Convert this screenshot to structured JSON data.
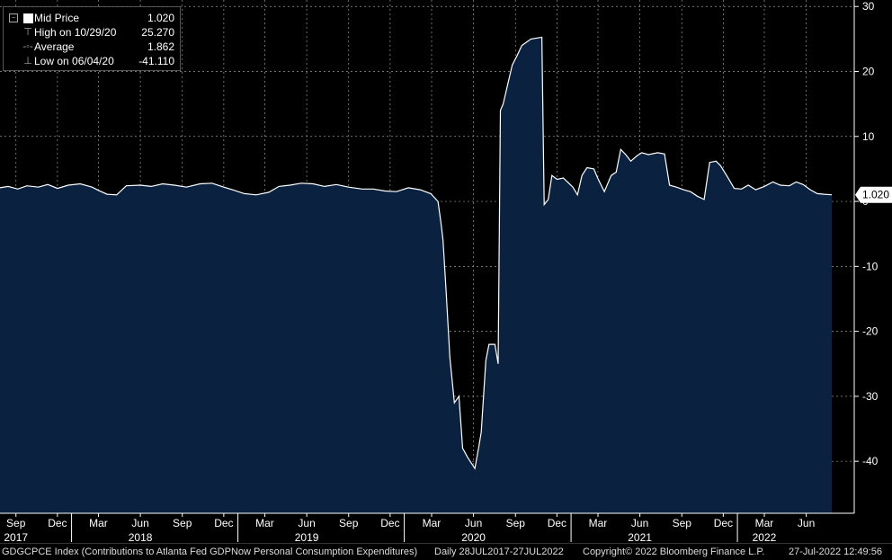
{
  "legend": {
    "mid_label": "Mid Price",
    "mid_value": "1.020",
    "high_label": "High on 10/29/20",
    "high_value": "25.270",
    "avg_label": "Average",
    "avg_value": "1.862",
    "low_label": "Low on 06/04/20",
    "low_value": "-41.110"
  },
  "last_price_label": "1.020",
  "footer": {
    "security": "GDGCPCE Index (Contributions to Atlanta Fed GDPNow Personal Consumption Expenditures)",
    "range": "Daily 28JUL2017-27JUL2022",
    "copyright": "Copyright© 2022 Bloomberg Finance L.P.",
    "timestamp": "27-Jul-2022 12:49:56"
  },
  "colors": {
    "fill": "#0a2240",
    "line": "#ffffff",
    "grid": "#9a9a9a",
    "background": "#000000"
  },
  "chart_data": {
    "type": "area",
    "ylim": [
      -48,
      31
    ],
    "yticks": [
      30,
      20,
      10,
      0,
      -10,
      -20,
      -30,
      -40
    ],
    "grid": true,
    "legend_position": "top-left",
    "xlim": [
      "2017-07-28",
      "2022-07-27"
    ],
    "month_ticks": [
      {
        "date": "2017-09-01",
        "label": "Sep"
      },
      {
        "date": "2017-12-01",
        "label": "Dec"
      },
      {
        "date": "2018-03-01",
        "label": "Mar"
      },
      {
        "date": "2018-06-01",
        "label": "Jun"
      },
      {
        "date": "2018-09-01",
        "label": "Sep"
      },
      {
        "date": "2018-12-01",
        "label": "Dec"
      },
      {
        "date": "2019-03-01",
        "label": "Mar"
      },
      {
        "date": "2019-06-01",
        "label": "Jun"
      },
      {
        "date": "2019-09-01",
        "label": "Sep"
      },
      {
        "date": "2019-12-01",
        "label": "Dec"
      },
      {
        "date": "2020-03-01",
        "label": "Mar"
      },
      {
        "date": "2020-06-01",
        "label": "Jun"
      },
      {
        "date": "2020-09-01",
        "label": "Sep"
      },
      {
        "date": "2020-12-01",
        "label": "Dec"
      },
      {
        "date": "2021-03-01",
        "label": "Mar"
      },
      {
        "date": "2021-06-01",
        "label": "Jun"
      },
      {
        "date": "2021-09-01",
        "label": "Sep"
      },
      {
        "date": "2021-12-01",
        "label": "Dec"
      },
      {
        "date": "2022-03-01",
        "label": "Mar"
      },
      {
        "date": "2022-06-01",
        "label": "Jun"
      }
    ],
    "year_ticks": [
      {
        "date": "2017-09-01",
        "label": "2017"
      },
      {
        "date": "2018-06-01",
        "label": "2018"
      },
      {
        "date": "2019-06-01",
        "label": "2019"
      },
      {
        "date": "2020-06-01",
        "label": "2020"
      },
      {
        "date": "2021-06-01",
        "label": "2021"
      },
      {
        "date": "2022-03-01",
        "label": "2022"
      }
    ],
    "series": [
      {
        "points": [
          [
            "2017-07-28",
            2.1
          ],
          [
            "2017-08-15",
            2.3
          ],
          [
            "2017-09-05",
            1.9
          ],
          [
            "2017-09-25",
            2.4
          ],
          [
            "2017-10-20",
            2.2
          ],
          [
            "2017-11-10",
            2.6
          ],
          [
            "2017-12-01",
            2.0
          ],
          [
            "2017-12-25",
            2.5
          ],
          [
            "2018-01-20",
            2.7
          ],
          [
            "2018-02-15",
            2.2
          ],
          [
            "2018-03-01",
            1.7
          ],
          [
            "2018-03-20",
            1.1
          ],
          [
            "2018-04-10",
            1.0
          ],
          [
            "2018-05-01",
            2.4
          ],
          [
            "2018-06-01",
            2.5
          ],
          [
            "2018-06-25",
            2.3
          ],
          [
            "2018-07-20",
            2.7
          ],
          [
            "2018-08-15",
            2.5
          ],
          [
            "2018-09-10",
            2.2
          ],
          [
            "2018-10-10",
            2.7
          ],
          [
            "2018-11-05",
            2.8
          ],
          [
            "2018-12-01",
            2.2
          ],
          [
            "2018-12-20",
            1.8
          ],
          [
            "2019-01-15",
            1.2
          ],
          [
            "2019-02-10",
            1.0
          ],
          [
            "2019-03-10",
            1.4
          ],
          [
            "2019-04-01",
            2.3
          ],
          [
            "2019-04-25",
            2.5
          ],
          [
            "2019-05-20",
            2.8
          ],
          [
            "2019-06-15",
            2.7
          ],
          [
            "2019-07-10",
            2.3
          ],
          [
            "2019-08-05",
            2.6
          ],
          [
            "2019-09-01",
            2.2
          ],
          [
            "2019-10-01",
            1.9
          ],
          [
            "2019-10-25",
            1.9
          ],
          [
            "2019-11-20",
            1.6
          ],
          [
            "2019-12-15",
            1.5
          ],
          [
            "2020-01-10",
            2.1
          ],
          [
            "2020-02-05",
            1.8
          ],
          [
            "2020-02-28",
            1.2
          ],
          [
            "2020-03-15",
            0.0
          ],
          [
            "2020-03-22",
            -3.5
          ],
          [
            "2020-03-26",
            -6.0
          ],
          [
            "2020-04-02",
            -14.0
          ],
          [
            "2020-04-10",
            -24.0
          ],
          [
            "2020-04-20",
            -31.0
          ],
          [
            "2020-04-30",
            -30.0
          ],
          [
            "2020-05-08",
            -38.0
          ],
          [
            "2020-05-20",
            -39.5
          ],
          [
            "2020-06-04",
            -41.11
          ],
          [
            "2020-06-12",
            -38.0
          ],
          [
            "2020-06-18",
            -35.5
          ],
          [
            "2020-06-28",
            -24.5
          ],
          [
            "2020-07-05",
            -22.0
          ],
          [
            "2020-07-18",
            -22.0
          ],
          [
            "2020-07-25",
            -25.0
          ],
          [
            "2020-07-30",
            14.0
          ],
          [
            "2020-08-05",
            15.0
          ],
          [
            "2020-08-15",
            18.0
          ],
          [
            "2020-08-25",
            21.0
          ],
          [
            "2020-09-05",
            22.5
          ],
          [
            "2020-09-15",
            24.0
          ],
          [
            "2020-09-25",
            24.5
          ],
          [
            "2020-10-05",
            25.0
          ],
          [
            "2020-10-29",
            25.27
          ],
          [
            "2020-11-03",
            -0.5
          ],
          [
            "2020-11-12",
            0.3
          ],
          [
            "2020-11-20",
            4.0
          ],
          [
            "2020-12-01",
            3.4
          ],
          [
            "2020-12-15",
            3.6
          ],
          [
            "2021-01-05",
            2.2
          ],
          [
            "2021-01-15",
            1.0
          ],
          [
            "2021-01-25",
            4.0
          ],
          [
            "2021-02-05",
            5.2
          ],
          [
            "2021-02-20",
            5.0
          ],
          [
            "2021-03-01",
            3.5
          ],
          [
            "2021-03-15",
            1.5
          ],
          [
            "2021-03-30",
            4.0
          ],
          [
            "2021-04-10",
            4.5
          ],
          [
            "2021-04-20",
            8.0
          ],
          [
            "2021-05-01",
            7.2
          ],
          [
            "2021-05-12",
            6.2
          ],
          [
            "2021-05-25",
            7.0
          ],
          [
            "2021-06-05",
            7.5
          ],
          [
            "2021-06-20",
            7.2
          ],
          [
            "2021-07-10",
            7.5
          ],
          [
            "2021-07-25",
            7.3
          ],
          [
            "2021-08-05",
            2.5
          ],
          [
            "2021-08-20",
            2.2
          ],
          [
            "2021-09-05",
            1.8
          ],
          [
            "2021-09-20",
            1.5
          ],
          [
            "2021-10-05",
            0.8
          ],
          [
            "2021-10-20",
            0.3
          ],
          [
            "2021-11-01",
            6.0
          ],
          [
            "2021-11-15",
            6.2
          ],
          [
            "2021-11-25",
            5.5
          ],
          [
            "2021-12-10",
            3.8
          ],
          [
            "2021-12-25",
            2.0
          ],
          [
            "2022-01-10",
            1.9
          ],
          [
            "2022-01-25",
            2.5
          ],
          [
            "2022-02-10",
            1.8
          ],
          [
            "2022-03-01",
            2.3
          ],
          [
            "2022-03-20",
            3.0
          ],
          [
            "2022-04-05",
            2.5
          ],
          [
            "2022-04-25",
            2.4
          ],
          [
            "2022-05-10",
            3.0
          ],
          [
            "2022-05-25",
            2.6
          ],
          [
            "2022-06-10",
            1.8
          ],
          [
            "2022-06-25",
            1.2
          ],
          [
            "2022-07-10",
            1.1
          ],
          [
            "2022-07-27",
            1.02
          ]
        ]
      }
    ]
  }
}
